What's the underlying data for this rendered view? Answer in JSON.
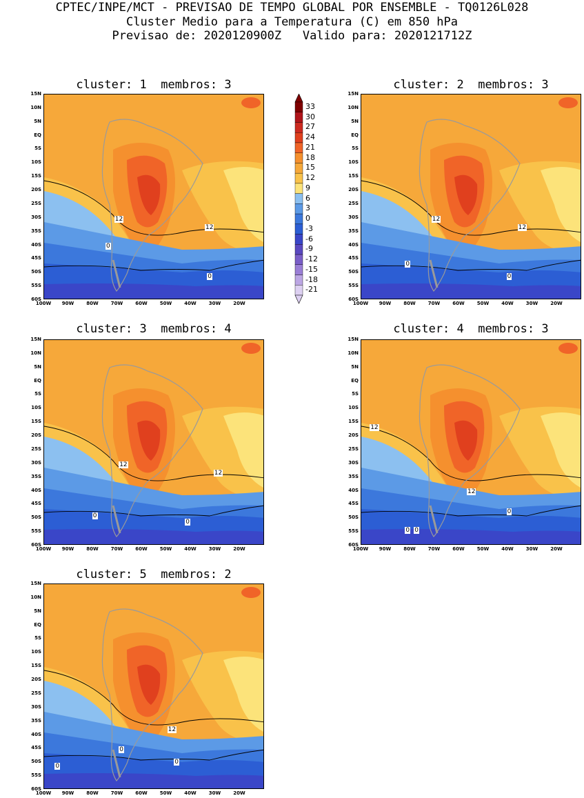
{
  "header": {
    "line1": "CPTEC/INPE/MCT - PREVISAO DE TEMPO GLOBAL POR ENSEMBLE - TQ0126L028",
    "line2": "Cluster Medio para a Temperatura (C) em 850 hPa",
    "line3": "Previsao de: 2020120900Z   Valido para: 2020121712Z"
  },
  "panels": [
    {
      "title": "cluster: 1  membros: 3",
      "contour_labels": [
        "12",
        "12",
        "0",
        "0"
      ]
    },
    {
      "title": "cluster: 2  membros: 3",
      "contour_labels": [
        "12",
        "12",
        "0",
        "0"
      ]
    },
    {
      "title": "cluster: 3  membros: 4",
      "contour_labels": [
        "12",
        "12",
        "0",
        "0"
      ]
    },
    {
      "title": "cluster: 4  membros: 3",
      "contour_labels": [
        "12",
        "12",
        "0",
        "0",
        "0"
      ]
    },
    {
      "title": "cluster: 5  membros: 2",
      "contour_labels": [
        "12",
        "0",
        "0",
        "0"
      ]
    }
  ],
  "axes": {
    "lat_ticks": [
      "15N",
      "10N",
      "5N",
      "EQ",
      "5S",
      "10S",
      "15S",
      "20S",
      "25S",
      "30S",
      "35S",
      "40S",
      "45S",
      "50S",
      "55S",
      "60S"
    ],
    "lon_ticks": [
      "100W",
      "90W",
      "80W",
      "70W",
      "60W",
      "50W",
      "40W",
      "30W",
      "20W"
    ]
  },
  "colorbar": {
    "levels": [
      "33",
      "30",
      "27",
      "24",
      "21",
      "18",
      "15",
      "12",
      "9",
      "6",
      "3",
      "0",
      "-3",
      "-6",
      "-9",
      "-12",
      "-15",
      "-18",
      "-21"
    ],
    "colors": [
      "#7f0000",
      "#b0141a",
      "#cc2a20",
      "#e0401e",
      "#f06428",
      "#f5902e",
      "#f6a83a",
      "#f9c24a",
      "#fce37a",
      "#8cc0f0",
      "#5c9ae6",
      "#3c78dc",
      "#2c5ed4",
      "#3a46c8",
      "#5a48c0",
      "#7a5ec8",
      "#9a7ed6",
      "#bca6e4",
      "#ddd0f2"
    ]
  }
}
